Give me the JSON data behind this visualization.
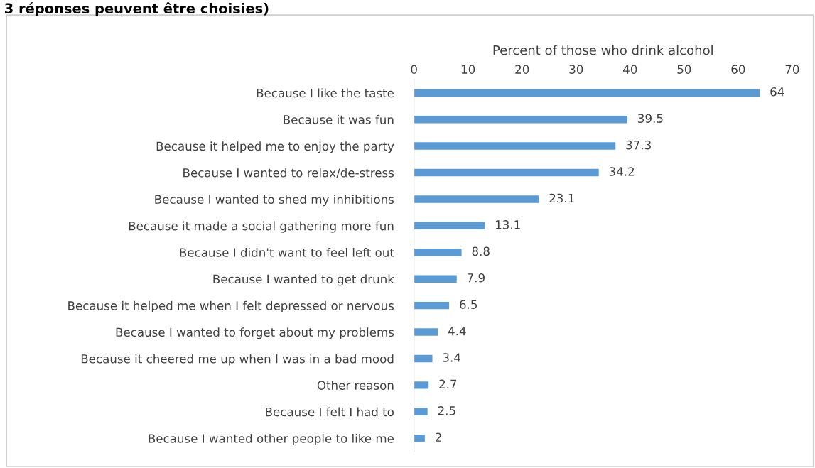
{
  "chart_data": {
    "type": "bar",
    "orientation": "horizontal",
    "annotations": [
      "3 réponses peuvent être choisies)"
    ],
    "xlabel": "Percent of those who drink alcohol",
    "categories": [
      "Because I like the taste",
      "Because it was fun",
      "Because it helped me to enjoy the party",
      "Because I wanted to relax/de-stress",
      "Because I wanted to shed my inhibitions",
      "Because it made a social gathering more fun",
      "Because I didn't want to feel left out",
      "Because I wanted to get drunk",
      "Because it helped me when I felt depressed or nervous",
      "Because I wanted to forget about my problems",
      "Because it cheered me up when I was in a bad mood",
      "Other reason",
      "Because I felt I had to",
      "Because I wanted other people to like me"
    ],
    "values": [
      64,
      39.5,
      37.3,
      34.2,
      23.1,
      13.1,
      8.8,
      7.9,
      6.5,
      4.4,
      3.4,
      2.7,
      2.5,
      2
    ],
    "color": "#5b9bd5",
    "xlim": [
      0,
      70
    ],
    "xticks": [
      0,
      10,
      20,
      30,
      40,
      50,
      60,
      70
    ],
    "data_labels": true,
    "grid": false,
    "legend": false
  }
}
